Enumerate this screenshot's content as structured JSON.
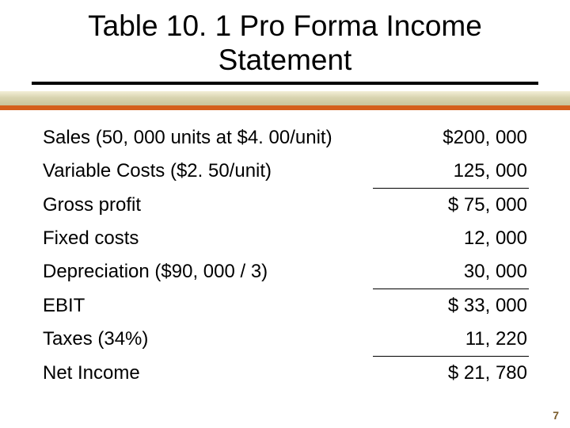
{
  "title_line1": "Table 10. 1 Pro Forma Income",
  "title_line2": "Statement",
  "colors": {
    "accent_bar": "#d45f1c",
    "gradient_top": "#f3efd9",
    "gradient_mid": "#d9d4b0",
    "gradient_bottom": "#c9c49a",
    "title_underline": "#000000",
    "text": "#000000",
    "page_num": "#7a5b2a",
    "background": "#ffffff"
  },
  "typography": {
    "title_fontsize": 37,
    "row_fontsize": 24,
    "page_num_fontsize": 14,
    "font_family": "Arial"
  },
  "table": {
    "type": "table",
    "columns": [
      "label",
      "value"
    ],
    "column_align": [
      "left",
      "right"
    ],
    "rows": [
      {
        "label": "Sales (50, 000 units at $4. 00/unit)",
        "value": "$200, 000",
        "rule_above": false
      },
      {
        "label": "Variable Costs ($2. 50/unit)",
        "value": "125, 000",
        "rule_above": false
      },
      {
        "label": "Gross profit",
        "value": "$ 75, 000",
        "rule_above": true
      },
      {
        "label": "Fixed costs",
        "value": "12, 000",
        "rule_above": false
      },
      {
        "label": "Depreciation ($90, 000 / 3)",
        "value": "30, 000",
        "rule_above": false
      },
      {
        "label": "EBIT",
        "value": "$ 33, 000",
        "rule_above": true
      },
      {
        "label": "Taxes (34%)",
        "value": "11, 220",
        "rule_above": false
      },
      {
        "label": "Net Income",
        "value": "$ 21, 780",
        "rule_above": true
      }
    ]
  },
  "page_number": "7"
}
